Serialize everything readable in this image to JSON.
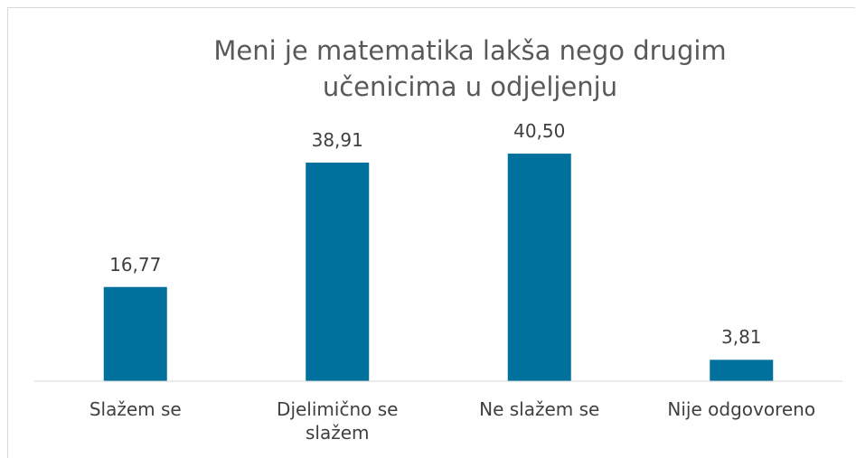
{
  "chart_data": {
    "type": "bar",
    "title": "Meni je matematika lakša nego drugim učenicima u odjeljenju",
    "categories": [
      "Slažem se",
      "Djelimično se slažem",
      "Ne slažem se",
      "Nije odgovoreno"
    ],
    "values": [
      16.77,
      38.91,
      40.5,
      3.81
    ],
    "value_labels": [
      "16,77",
      "38,91",
      "40,50",
      "3,81"
    ],
    "color": "#00709d"
  }
}
